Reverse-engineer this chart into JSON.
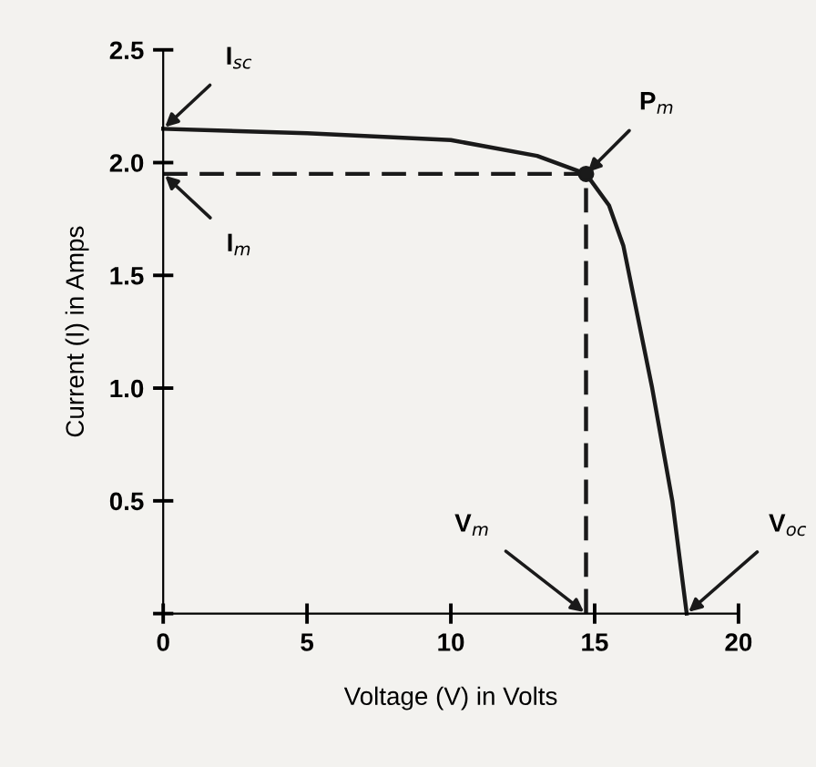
{
  "chart_data": {
    "type": "line",
    "xlabel": "Voltage (V) in Volts",
    "ylabel": "Current (I) in Amps",
    "xlim": [
      0,
      20
    ],
    "ylim": [
      0,
      2.5
    ],
    "xticks": [
      0,
      5,
      10,
      15,
      20
    ],
    "yticks": [
      {
        "value": 0,
        "label": null
      },
      0.5,
      {
        "value": 1,
        "label": "1.0"
      },
      1.5,
      {
        "value": 2,
        "label": "2.0"
      },
      2.5
    ],
    "grid": false,
    "legend": false,
    "marker": "none",
    "line_style": "solid",
    "series": [
      {
        "color": "#1a1a1a",
        "x": [
          0,
          5,
          10,
          13,
          14.7,
          15.5,
          16,
          17,
          17.7,
          18.2
        ],
        "values": [
          2.15,
          2.13,
          2.1,
          2.03,
          1.95,
          1.81,
          1.63,
          1.0,
          0.5,
          0
        ]
      },
      {
        "color": "#1a1a1a",
        "line_style": "dashed",
        "x": [
          0,
          14.7,
          14.7
        ],
        "values": [
          1.95,
          1.95,
          0
        ]
      },
      {
        "type": "scatter",
        "marker": "circle",
        "color": "#1a1a1a",
        "x": [
          14.7
        ],
        "values": [
          1.95
        ]
      }
    ],
    "annotations": [
      {
        "text": "I$_{sc}$",
        "x": 0,
        "y": 2.15
      },
      {
        "text": "I$_{m}$",
        "x": 0,
        "y": 1.95
      },
      {
        "text": "P$_{m}$",
        "x": 14.7,
        "y": 1.95
      },
      {
        "text": "V$_{m}$",
        "x": 14.7,
        "y": 0
      },
      {
        "text": "V$_{oc}$",
        "x": 18.2,
        "y": 0
      }
    ]
  }
}
